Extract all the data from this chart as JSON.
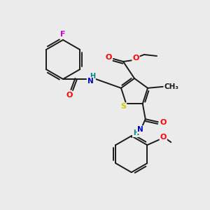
{
  "background_color": "#ebebeb",
  "bond_color": "#1a1a1a",
  "atom_colors": {
    "F": "#cc00cc",
    "O": "#ff0000",
    "N": "#0000cc",
    "S": "#cccc00",
    "H": "#008080",
    "C": "#1a1a1a"
  },
  "fig_width": 3.0,
  "fig_height": 3.0,
  "dpi": 100
}
